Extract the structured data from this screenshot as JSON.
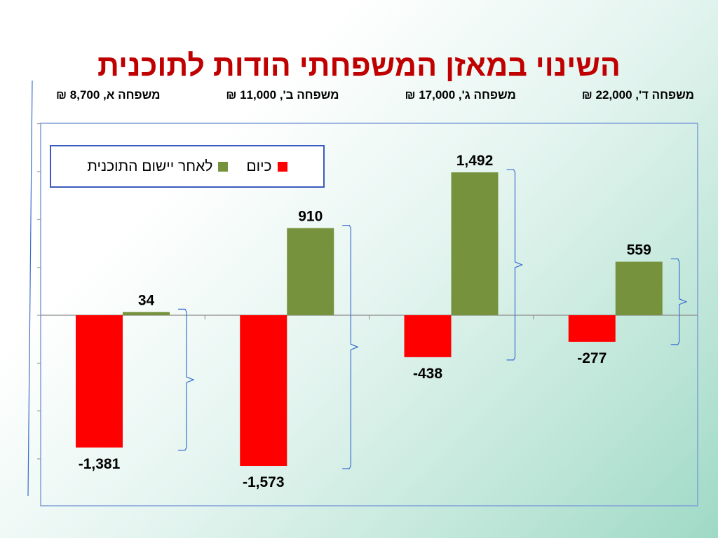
{
  "title": "השינוי במאזן המשפחתי הודות לתוכנית",
  "families": [
    "משפחה ד', 22,000 ₪",
    "משפחה ג', 17,000 ₪",
    "משפחה ב', 11,000 ₪",
    "משפחה א, 8,700 ₪"
  ],
  "colors": {
    "today": "#ff0000",
    "after": "#76923c",
    "frame": "#7f9fd9",
    "brace": "#3a6fd0"
  },
  "chart_data": {
    "type": "bar",
    "title": "השינוי במאזן המשפחתי הודות לתוכנית",
    "categories": [
      "משפחה א, 8,700 ₪",
      "משפחה ב', 11,000 ₪",
      "משפחה ג', 17,000 ₪",
      "משפחה ד', 22,000 ₪"
    ],
    "series": [
      {
        "name": "כיום",
        "values": [
          -1381,
          -1573,
          -438,
          -277
        ],
        "labels": [
          "-1,381",
          "-1,573",
          "-438",
          "-277"
        ]
      },
      {
        "name": "לאחר יישום התוכנית",
        "values": [
          34,
          910,
          1492,
          559
        ],
        "labels": [
          "34",
          "910",
          "1,492",
          "559"
        ]
      }
    ],
    "ylim": [
      -2000,
      2000
    ],
    "grid": false,
    "legend_position": "top-left"
  }
}
